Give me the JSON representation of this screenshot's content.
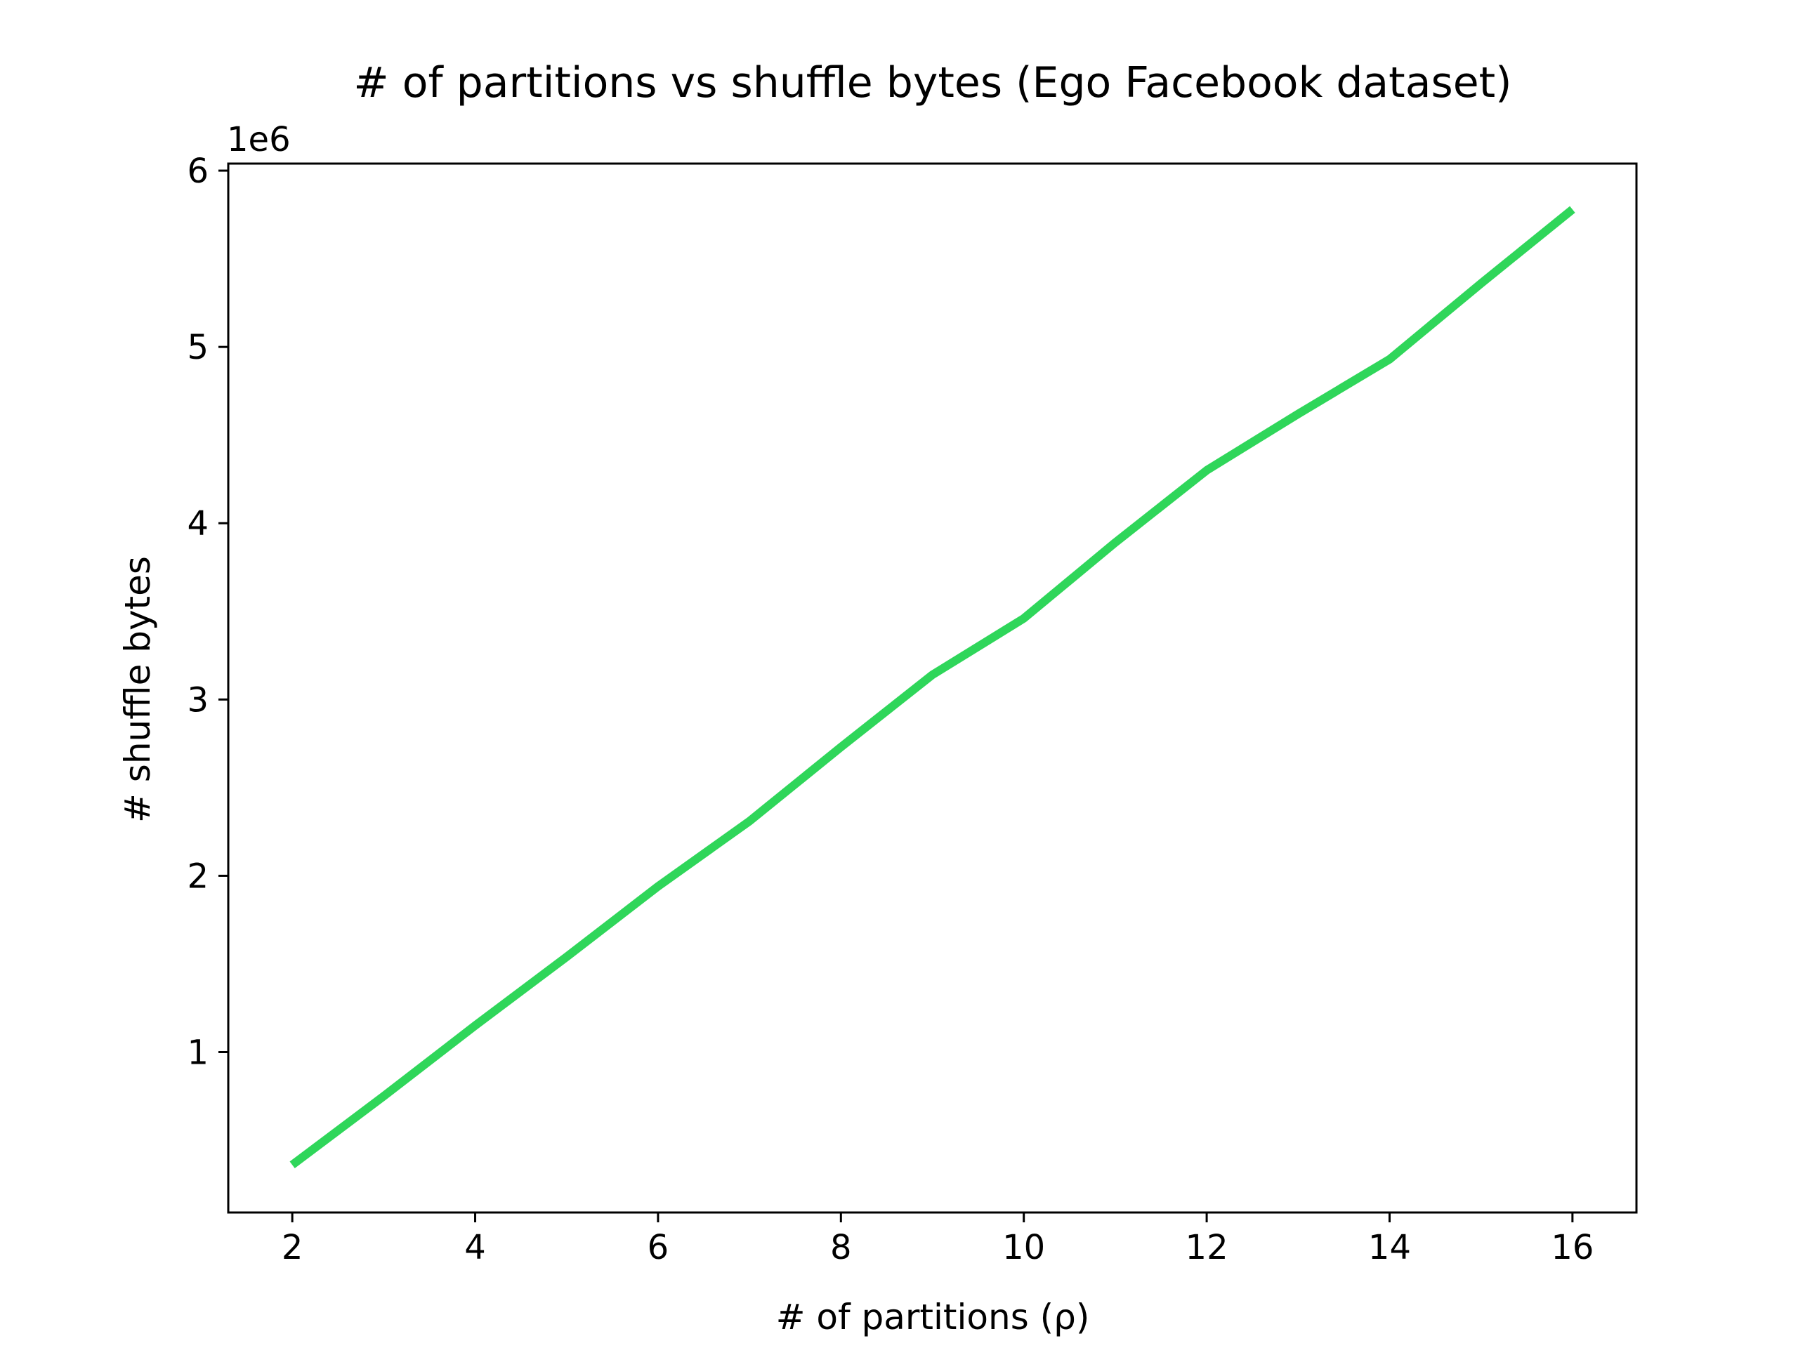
{
  "chart_data": {
    "type": "line",
    "title": "# of partitions vs shuffle bytes (Ego Facebook dataset)",
    "xlabel": "# of partitions (ρ)",
    "ylabel": "# shuffle bytes",
    "y_offset_label": "1e6",
    "x_ticks": [
      2,
      4,
      6,
      8,
      10,
      12,
      14,
      16
    ],
    "x_tick_labels": [
      "2",
      "4",
      "6",
      "8",
      "10",
      "12",
      "14",
      "16"
    ],
    "y_ticks": [
      1,
      2,
      3,
      4,
      5,
      6
    ],
    "y_tick_labels": [
      "1",
      "2",
      "3",
      "4",
      "5",
      "6"
    ],
    "xlim": [
      1.3,
      16.7
    ],
    "ylim": [
      0.09,
      6.04
    ],
    "y_multiplier": 1000000,
    "grid": false,
    "color": "#2fd65a",
    "series": [
      {
        "x": [
          2,
          3,
          4,
          5,
          6,
          7,
          8,
          9,
          10,
          11,
          12,
          13,
          14,
          15,
          16
        ],
        "y": [
          0.36,
          0.75,
          1.15,
          1.54,
          1.94,
          2.31,
          2.73,
          3.14,
          3.46,
          3.89,
          4.3,
          4.62,
          4.93,
          5.36,
          5.78
        ]
      }
    ]
  }
}
